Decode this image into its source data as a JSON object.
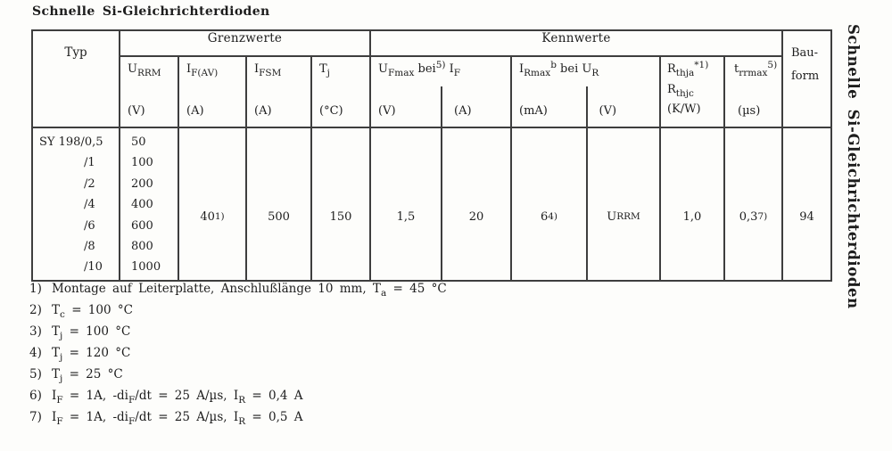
{
  "title": "Schnelle Si-Gleichrichterdioden",
  "side_title": "Schnelle Si-Gleichrichterdioden",
  "table": {
    "typ_header": "Typ",
    "group_grenzwerte": "Grenzwerte",
    "group_kennwerte": "Kennwerte",
    "bauform_line1": "Bau-",
    "bauform_line2": "form",
    "cols": {
      "urrm": {
        "sym": "U_{RRM}",
        "unit": "(V)"
      },
      "ifav": {
        "sym": "I_{F(AV)}",
        "unit": "(A)"
      },
      "ifsm": {
        "sym": "I_{FSM}",
        "unit": "(A)"
      },
      "tj": {
        "sym": "T_{j}",
        "unit": "(°C)"
      },
      "ufmax": {
        "sym": "U_{Fmax} bei^{5)} I_{F}",
        "unit_left": "(V)",
        "unit_right": "(A)"
      },
      "irmax": {
        "sym": "I_{Rmax}^{b} bei U_{R}",
        "unit_left": "(mA)",
        "unit_right": "(V)"
      },
      "rth": {
        "sym1": "R_{thja}^{*1)}",
        "sym2": "R_{thjc}",
        "unit": "(K/W)"
      },
      "trr": {
        "sym": "t_{rrmax}^{5)}",
        "unit": "(µs)"
      }
    },
    "rows": {
      "types": [
        "SY 198/0,5",
        "/1",
        "/2",
        "/4",
        "/6",
        "/8",
        "/10"
      ],
      "urrm": [
        "50",
        "100",
        "200",
        "400",
        "600",
        "800",
        "1000"
      ]
    },
    "values": {
      "ifav": "40^{1)}",
      "ifsm": "500",
      "tj": "150",
      "ufmax": "1,5",
      "if": "20",
      "irmax": "6^{4)}",
      "ur": "U_{RRM}",
      "rth": "1,0",
      "trr": "0,3^{7)}",
      "bauform": "94"
    },
    "footnotes": [
      {
        "num": "1)",
        "text": "Montage auf Leiterplatte, Anschlußlänge 10 mm, T_{a} = 45 °C"
      },
      {
        "num": "2)",
        "text": "T_{c} = 100 °C"
      },
      {
        "num": "3)",
        "text": "T_{j} = 100 °C"
      },
      {
        "num": "4)",
        "text": "T_{j} = 120 °C"
      },
      {
        "num": "5)",
        "text": "T_{j} = 25 °C"
      },
      {
        "num": "6)",
        "text": "I_{F} = 1A, -di_{F}/dt = 25 A/µs, I_{R} = 0,4 A"
      },
      {
        "num": "7)",
        "text": "I_{F} = 1A, -di_{F}/dt = 25 A/µs, I_{R} = 0,5 A"
      }
    ]
  }
}
